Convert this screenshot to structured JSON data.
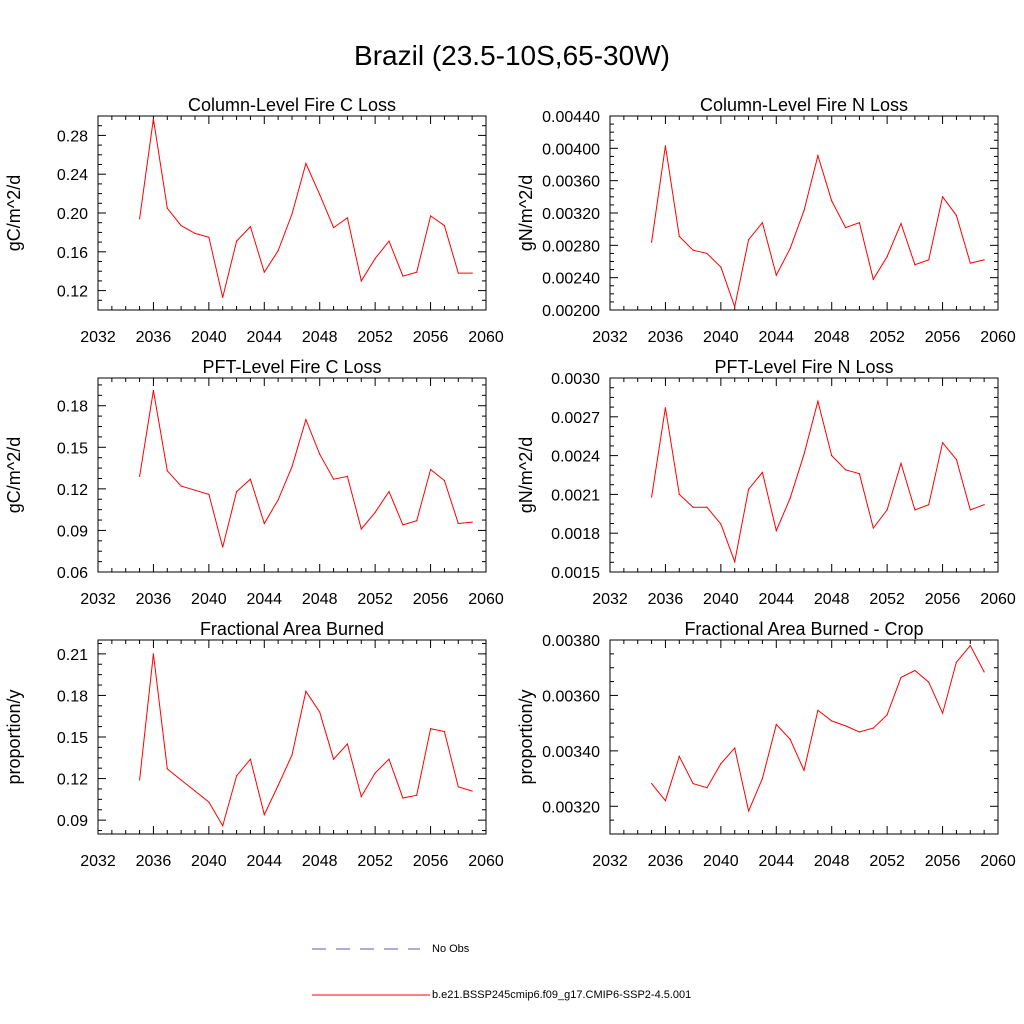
{
  "title": "Brazil (23.5-10S,65-30W)",
  "colors": {
    "series": "#ff0000",
    "obs": "#5a5ab4",
    "axis": "#000000"
  },
  "legend": {
    "obs_label": "No Obs",
    "model_label": "b.e21.BSSP245cmip6.f09_g17.CMIP6-SSP2-4.5.001"
  },
  "chart_data": [
    {
      "type": "line",
      "title": "Column-Level Fire C Loss",
      "ylabel": "gC/m^2/d",
      "xlim": [
        2032,
        2060
      ],
      "ylim": [
        0.1,
        0.3
      ],
      "xticks": [
        "2032",
        "2036",
        "2040",
        "2044",
        "2048",
        "2052",
        "2056",
        "2060"
      ],
      "yticks": [
        "0.12",
        "0.16",
        "0.20",
        "0.24",
        "0.28"
      ],
      "x": [
        2035,
        2036,
        2037,
        2038,
        2039,
        2040,
        2041,
        2042,
        2043,
        2044,
        2045,
        2046,
        2047,
        2048,
        2049,
        2050,
        2051,
        2052,
        2053,
        2054,
        2055,
        2056,
        2057,
        2058,
        2059
      ],
      "y": [
        0.194,
        0.297,
        0.205,
        0.187,
        0.179,
        0.175,
        0.113,
        0.171,
        0.186,
        0.139,
        0.161,
        0.199,
        0.251,
        0.219,
        0.185,
        0.195,
        0.13,
        0.153,
        0.171,
        0.135,
        0.139,
        0.197,
        0.187,
        0.138,
        0.138
      ]
    },
    {
      "type": "line",
      "title": "Column-Level Fire N Loss",
      "ylabel": "gN/m^2/d",
      "xlim": [
        2032,
        2060
      ],
      "ylim": [
        0.002,
        0.0044
      ],
      "xticks": [
        "2032",
        "2036",
        "2040",
        "2044",
        "2048",
        "2052",
        "2056",
        "2060"
      ],
      "yticks": [
        "0.00200",
        "0.00240",
        "0.00280",
        "0.00320",
        "0.00360",
        "0.00400",
        "0.00440"
      ],
      "x": [
        2035,
        2036,
        2037,
        2038,
        2039,
        2040,
        2041,
        2042,
        2043,
        2044,
        2045,
        2046,
        2047,
        2048,
        2049,
        2050,
        2051,
        2052,
        2053,
        2054,
        2055,
        2056,
        2057,
        2058,
        2059
      ],
      "y": [
        0.00284,
        0.00403,
        0.00291,
        0.00274,
        0.0027,
        0.00253,
        0.00204,
        0.00287,
        0.00308,
        0.00243,
        0.00276,
        0.00323,
        0.00391,
        0.00335,
        0.00302,
        0.00308,
        0.00238,
        0.00266,
        0.00307,
        0.00256,
        0.00262,
        0.0034,
        0.00317,
        0.00258,
        0.00262
      ]
    },
    {
      "type": "line",
      "title": "PFT-Level Fire C Loss",
      "ylabel": "gC/m^2/d",
      "xlim": [
        2032,
        2060
      ],
      "ylim": [
        0.06,
        0.2
      ],
      "xticks": [
        "2032",
        "2036",
        "2040",
        "2044",
        "2048",
        "2052",
        "2056",
        "2060"
      ],
      "yticks": [
        "0.06",
        "0.09",
        "0.12",
        "0.15",
        "0.18"
      ],
      "x": [
        2035,
        2036,
        2037,
        2038,
        2039,
        2040,
        2041,
        2042,
        2043,
        2044,
        2045,
        2046,
        2047,
        2048,
        2049,
        2050,
        2051,
        2052,
        2053,
        2054,
        2055,
        2056,
        2057,
        2058,
        2059
      ],
      "y": [
        0.129,
        0.191,
        0.133,
        0.122,
        0.119,
        0.116,
        0.078,
        0.118,
        0.127,
        0.095,
        0.112,
        0.136,
        0.17,
        0.145,
        0.127,
        0.129,
        0.091,
        0.103,
        0.118,
        0.094,
        0.097,
        0.134,
        0.126,
        0.095,
        0.096
      ]
    },
    {
      "type": "line",
      "title": "PFT-Level Fire N Loss",
      "ylabel": "gN/m^2/d",
      "xlim": [
        2032,
        2060
      ],
      "ylim": [
        0.0015,
        0.003
      ],
      "xticks": [
        "2032",
        "2036",
        "2040",
        "2044",
        "2048",
        "2052",
        "2056",
        "2060"
      ],
      "yticks": [
        "0.0015",
        "0.0018",
        "0.0021",
        "0.0024",
        "0.0027",
        "0.0030"
      ],
      "x": [
        2035,
        2036,
        2037,
        2038,
        2039,
        2040,
        2041,
        2042,
        2043,
        2044,
        2045,
        2046,
        2047,
        2048,
        2049,
        2050,
        2051,
        2052,
        2053,
        2054,
        2055,
        2056,
        2057,
        2058,
        2059
      ],
      "y": [
        0.00208,
        0.00277,
        0.0021,
        0.002,
        0.002,
        0.00187,
        0.00158,
        0.00214,
        0.00227,
        0.00182,
        0.00207,
        0.00241,
        0.00282,
        0.0024,
        0.00229,
        0.00226,
        0.00184,
        0.00198,
        0.00234,
        0.00198,
        0.00202,
        0.0025,
        0.00237,
        0.00198,
        0.00202
      ]
    },
    {
      "type": "line",
      "title": "Fractional Area Burned",
      "ylabel": "proportion/y",
      "xlim": [
        2032,
        2060
      ],
      "ylim": [
        0.08,
        0.22
      ],
      "xticks": [
        "2032",
        "2036",
        "2040",
        "2044",
        "2048",
        "2052",
        "2056",
        "2060"
      ],
      "yticks": [
        "0.09",
        "0.12",
        "0.15",
        "0.18",
        "0.21"
      ],
      "x": [
        2035,
        2036,
        2037,
        2038,
        2039,
        2040,
        2041,
        2042,
        2043,
        2044,
        2045,
        2046,
        2047,
        2048,
        2049,
        2050,
        2051,
        2052,
        2053,
        2054,
        2055,
        2056,
        2057,
        2058,
        2059
      ],
      "y": [
        0.119,
        0.21,
        0.127,
        0.119,
        0.111,
        0.103,
        0.086,
        0.122,
        0.134,
        0.094,
        0.115,
        0.137,
        0.183,
        0.168,
        0.134,
        0.145,
        0.107,
        0.124,
        0.134,
        0.106,
        0.108,
        0.156,
        0.154,
        0.114,
        0.111
      ]
    },
    {
      "type": "line",
      "title": "Fractional Area Burned - Crop",
      "ylabel": "proportion/y",
      "xlim": [
        2032,
        2060
      ],
      "ylim": [
        0.0031,
        0.0038
      ],
      "xticks": [
        "2032",
        "2036",
        "2040",
        "2044",
        "2048",
        "2052",
        "2056",
        "2060"
      ],
      "yticks": [
        "0.00320",
        "0.00340",
        "0.00360",
        "0.00380"
      ],
      "x": [
        2035,
        2036,
        2037,
        2038,
        2039,
        2040,
        2041,
        2042,
        2043,
        2044,
        2045,
        2046,
        2047,
        2048,
        2049,
        2050,
        2051,
        2052,
        2053,
        2054,
        2055,
        2056,
        2057,
        2058,
        2059
      ],
      "y": [
        0.003282,
        0.00322,
        0.00338,
        0.003282,
        0.003267,
        0.003354,
        0.00341,
        0.003183,
        0.0033,
        0.003495,
        0.003442,
        0.00333,
        0.003546,
        0.003508,
        0.00349,
        0.003468,
        0.003482,
        0.00353,
        0.003665,
        0.00369,
        0.003648,
        0.003536,
        0.00372,
        0.00378,
        0.003685
      ]
    }
  ]
}
